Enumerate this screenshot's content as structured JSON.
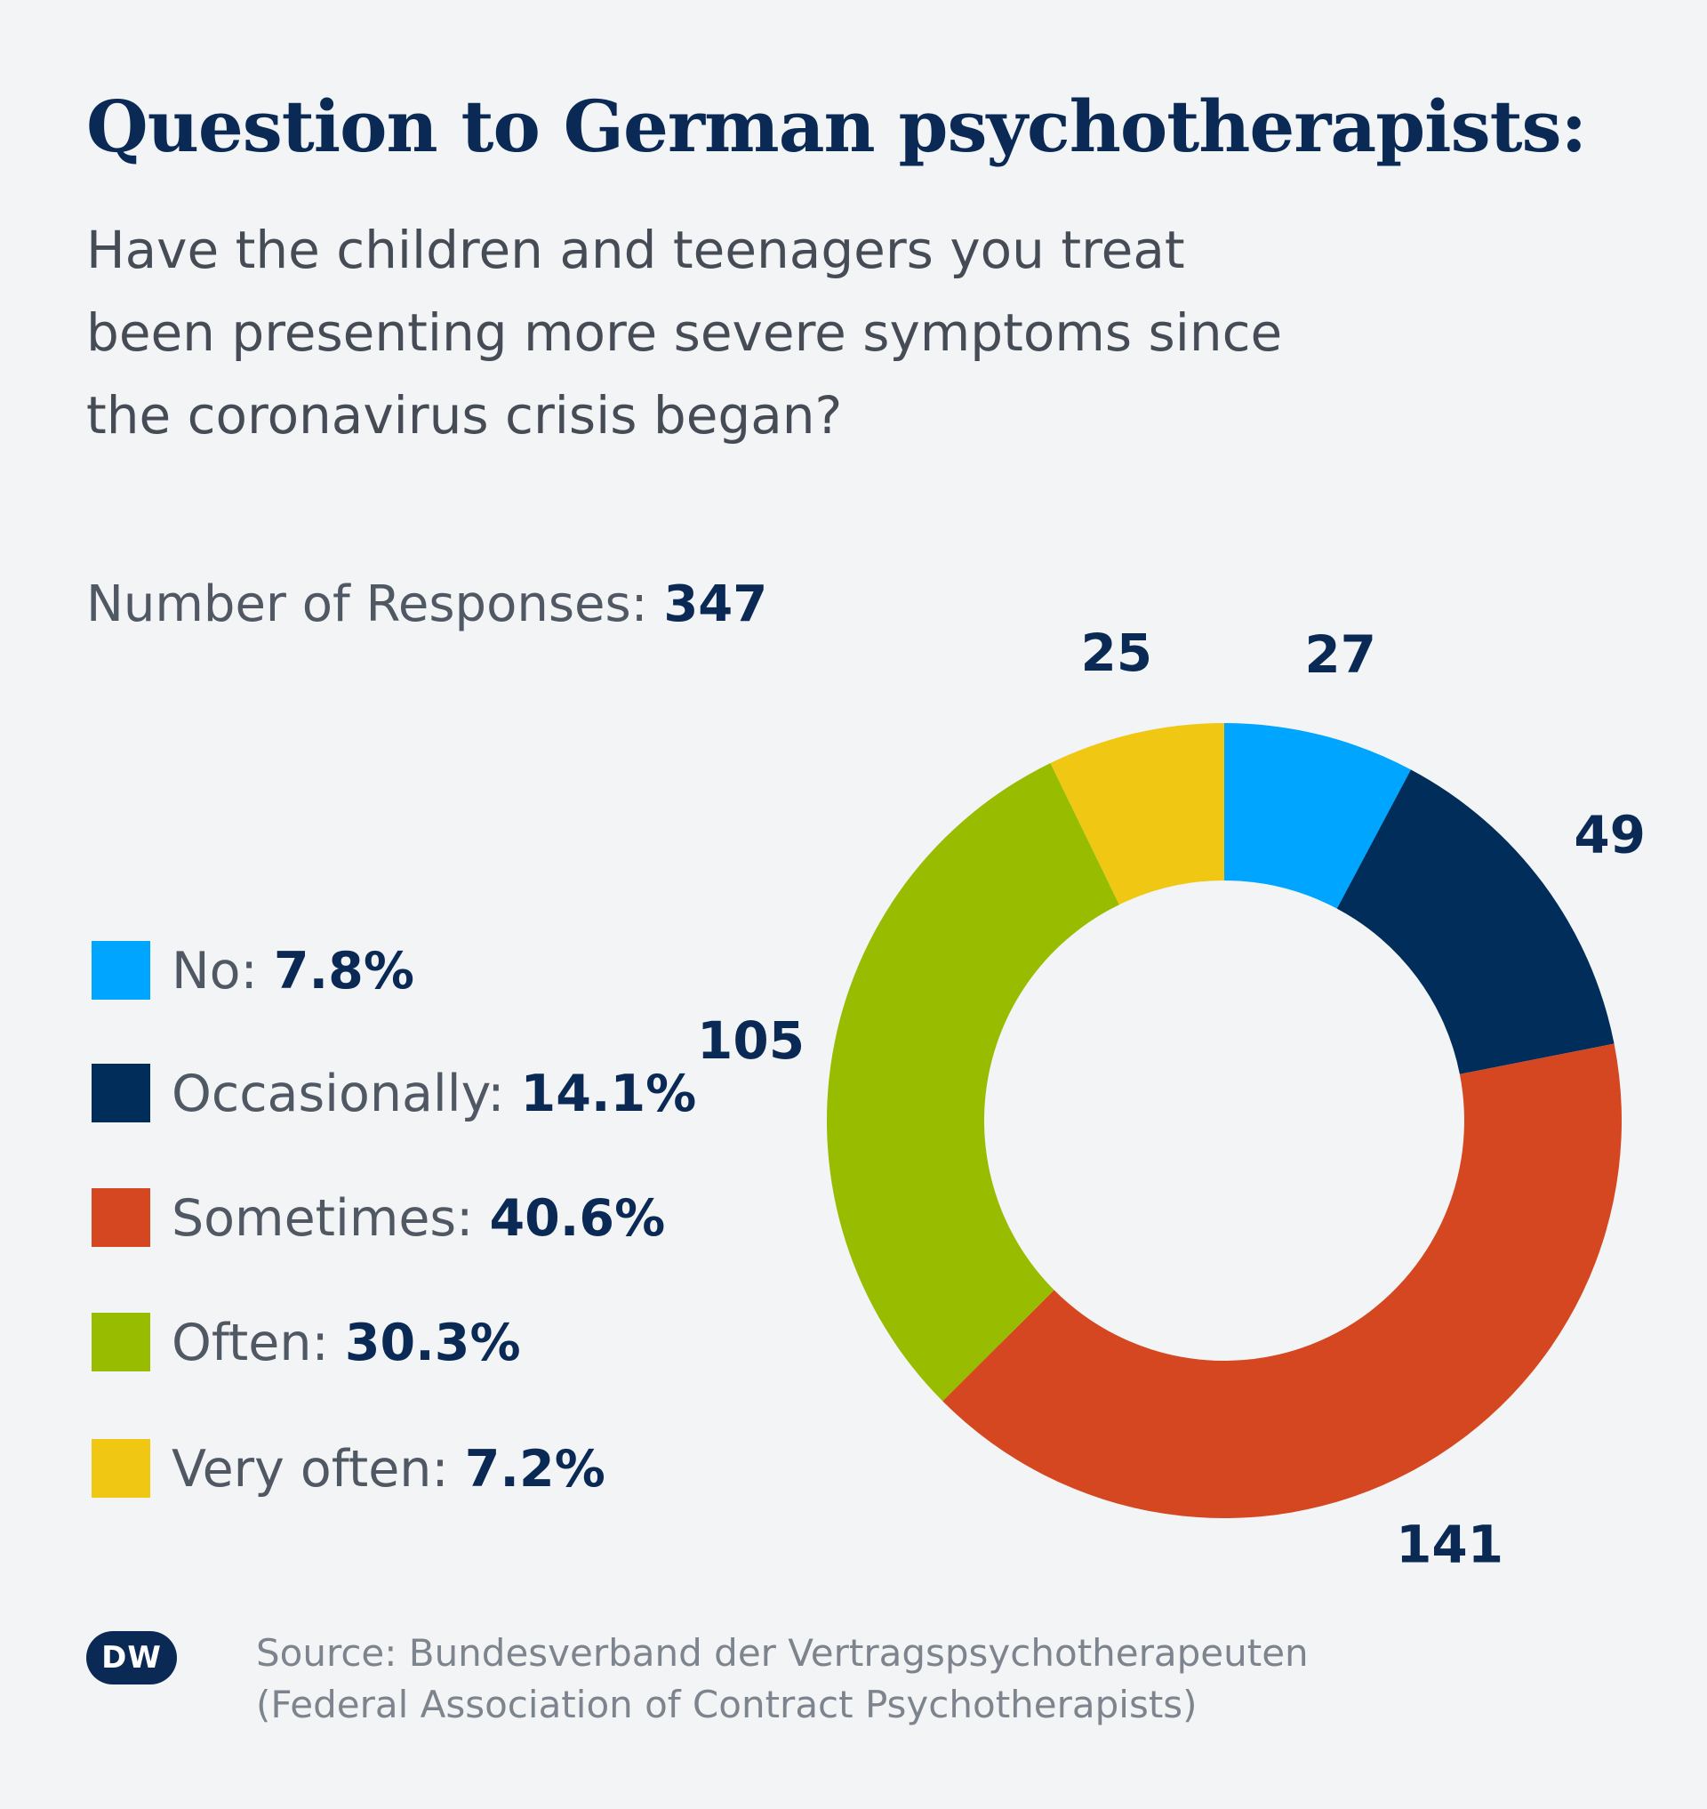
{
  "title": "Question to German psychotherapists:",
  "question_lines": [
    "Have the children and teenagers you treat",
    "been presenting more severe symptoms since",
    "the coronavirus crisis began?"
  ],
  "responses": {
    "label": "Number of Responses:",
    "value": "347"
  },
  "chart_data": {
    "type": "pie",
    "style": "donut",
    "title": "Question to German psychotherapists:",
    "subtitle": "Have the children and teenagers you treat been presenting more severe symptoms since the coronavirus crisis began?",
    "total_responses": 347,
    "categories": [
      "No",
      "Occasionally",
      "Sometimes",
      "Often",
      "Very often"
    ],
    "values": [
      27,
      49,
      141,
      105,
      25
    ],
    "percent_labels": [
      "7.8%",
      "14.1%",
      "40.6%",
      "30.3%",
      "7.2%"
    ],
    "value_labels": [
      "27",
      "49",
      "141",
      "105",
      "25"
    ],
    "colors": [
      "#00a5ff",
      "#002d5a",
      "#d54720",
      "#98bc00",
      "#f0c814"
    ],
    "legend_position": "left",
    "start": "top, clockwise"
  },
  "source": {
    "line1": "Source: Bundesverband der Vertragspsychotherapeuten",
    "line2": "(Federal Association of Contract Psychotherapists)"
  },
  "logo": "DW"
}
